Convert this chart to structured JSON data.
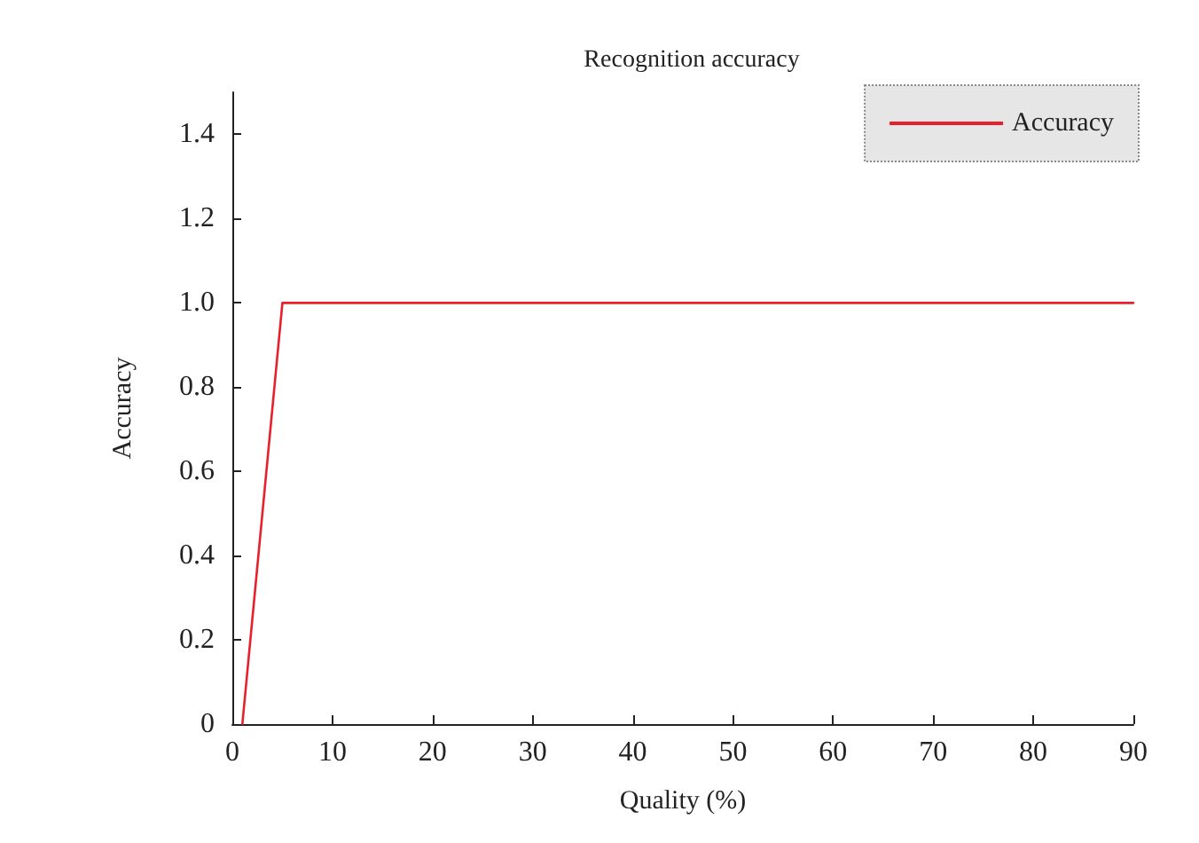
{
  "chart_data": {
    "type": "line",
    "title": "Recognition accuracy",
    "xlabel": "Quality (%)",
    "ylabel": "Accuracy",
    "x": [
      1,
      5,
      90
    ],
    "series": [
      {
        "name": "Accuracy",
        "color": "#e8202a",
        "values": [
          0,
          1,
          1
        ]
      }
    ],
    "xlim": [
      0,
      90
    ],
    "xticks": [
      0,
      10,
      20,
      30,
      40,
      50,
      60,
      70,
      80,
      90
    ],
    "ylim": [
      0,
      1.5
    ],
    "yticks": [
      0,
      0.2,
      0.4,
      0.6,
      0.8,
      {
        "value": 1,
        "label": "1.0"
      },
      1.2,
      1.4
    ],
    "grid": false,
    "legend": "top right",
    "marker": "none",
    "line_style": "solid"
  }
}
